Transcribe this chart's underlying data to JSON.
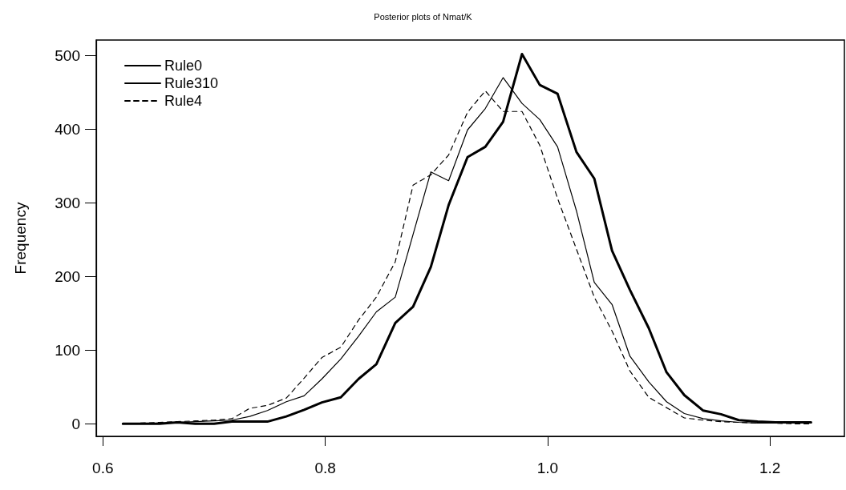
{
  "chart_data": {
    "type": "line",
    "title": "Posterior plots of Nmat/K",
    "ylabel": "Frequency",
    "x": [
      0.618,
      0.634,
      0.651,
      0.667,
      0.683,
      0.7,
      0.716,
      0.732,
      0.748,
      0.765,
      0.781,
      0.797,
      0.814,
      0.83,
      0.846,
      0.863,
      0.879,
      0.895,
      0.911,
      0.928,
      0.944,
      0.96,
      0.977,
      0.993,
      1.009,
      1.026,
      1.042,
      1.058,
      1.074,
      1.091,
      1.107,
      1.123,
      1.14,
      1.156,
      1.172,
      1.189,
      1.205,
      1.221,
      1.237
    ],
    "series": [
      {
        "name": "Rule0",
        "color": "#000000",
        "line_style": "solid",
        "values": [
          0,
          0,
          0,
          2,
          0,
          0,
          3,
          3,
          3,
          10,
          19,
          29,
          36,
          61,
          81,
          137,
          159,
          213,
          297,
          362,
          376,
          410,
          502,
          460,
          448,
          369,
          333,
          235,
          182,
          130,
          70,
          39,
          18,
          13,
          5,
          3,
          2,
          2,
          2
        ]
      },
      {
        "name": "Rule310",
        "color": "#000000",
        "line_style": "solid",
        "values": [
          0,
          0,
          1,
          2,
          3,
          4,
          5,
          10,
          18,
          30,
          38,
          61,
          88,
          119,
          152,
          172,
          257,
          342,
          330,
          399,
          428,
          470,
          435,
          413,
          376,
          289,
          192,
          162,
          92,
          57,
          30,
          14,
          7,
          4,
          2,
          1,
          1,
          1,
          1
        ]
      },
      {
        "name": "Rule4",
        "color": "#000000",
        "line_style": "dashed",
        "values": [
          0,
          1,
          2,
          3,
          4,
          5,
          7,
          21,
          25,
          35,
          62,
          90,
          104,
          141,
          172,
          220,
          324,
          338,
          365,
          423,
          452,
          424,
          424,
          378,
          306,
          237,
          172,
          126,
          72,
          36,
          22,
          8,
          5,
          3,
          2,
          1,
          1,
          0,
          0
        ]
      }
    ],
    "xlim": [
      0.594,
      1.267
    ],
    "xticks": [
      0.6,
      0.8,
      {
        "value": 1,
        "label": "1.0"
      },
      1.2
    ],
    "ylim": [
      -17,
      521
    ],
    "yticks": [
      0,
      100,
      200,
      300,
      400,
      500
    ],
    "grid": false,
    "legend": "top left",
    "marker": "none"
  }
}
